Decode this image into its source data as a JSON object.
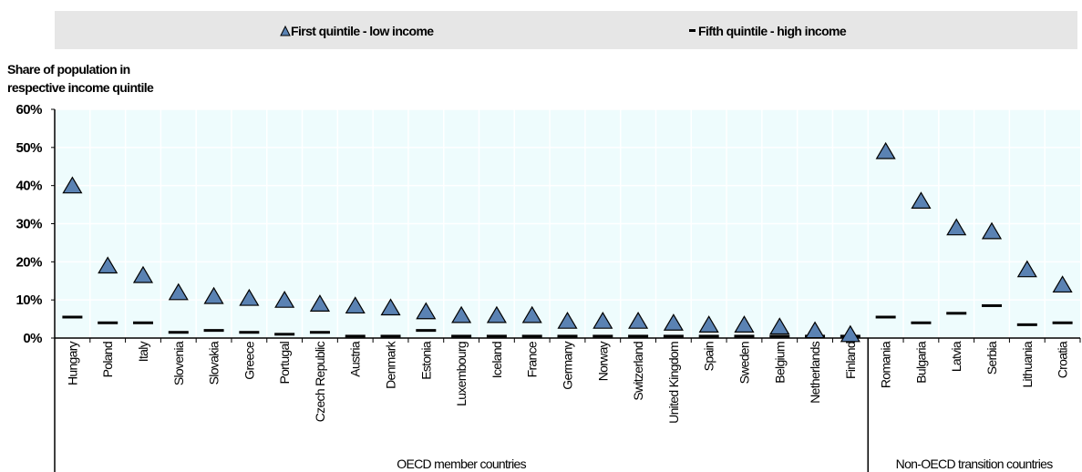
{
  "legend": {
    "first": "First quintile - low income",
    "fifth": "Fifth quintile - high income"
  },
  "y_axis_title": [
    "Share of population in",
    "respective income quintile"
  ],
  "colors": {
    "plot_background": "#eefcfd",
    "triangle_fill": "#5a82b3",
    "marker_stroke": "#000000",
    "legend_background": "#e6e6e6"
  },
  "chart_data": {
    "type": "scatter",
    "categories": [
      "Hungary",
      "Poland",
      "Italy",
      "Slovenia",
      "Slovakia",
      "Greece",
      "Portugal",
      "Czech Republic",
      "Austria",
      "Denmark",
      "Estonia",
      "Luxembourg",
      "Iceland",
      "France",
      "Germany",
      "Norway",
      "Switzerland",
      "United Kingdom",
      "Spain",
      "Sweden",
      "Belgium",
      "Netherlands",
      "Finland",
      "Romania",
      "Bulgaria",
      "Latvia",
      "Serbia",
      "Lithuania",
      "Croatia"
    ],
    "groups": [
      {
        "label": "OECD member countries",
        "count": 23
      },
      {
        "label": "Non-OECD transition countries",
        "count": 6
      }
    ],
    "series": [
      {
        "name": "First quintile - low income",
        "marker": "triangle",
        "values": [
          40,
          19,
          16.5,
          12,
          11,
          10.5,
          10,
          9,
          8.5,
          8,
          7,
          6,
          6,
          6,
          4.5,
          4.5,
          4.5,
          4,
          3.5,
          3.5,
          3,
          2,
          1,
          49,
          36,
          29,
          28,
          18,
          14
        ]
      },
      {
        "name": "Fifth quintile - high income",
        "marker": "dash",
        "values": [
          5.5,
          4,
          4,
          1.5,
          2,
          1.5,
          1,
          1.5,
          0.5,
          0.5,
          2,
          0.5,
          0.5,
          0.5,
          0.5,
          0.5,
          0.5,
          0.5,
          0.5,
          0.5,
          0.5,
          0.5,
          0.5,
          5.5,
          4,
          6.5,
          8.5,
          3.5,
          4
        ]
      }
    ],
    "ylim": [
      0,
      60
    ],
    "yticks": [
      0,
      10,
      20,
      30,
      40,
      50,
      60
    ],
    "ytick_labels": [
      "0%",
      "10%",
      "20%",
      "30%",
      "40%",
      "50%",
      "60%"
    ],
    "grid": true,
    "legend_position": "top"
  }
}
